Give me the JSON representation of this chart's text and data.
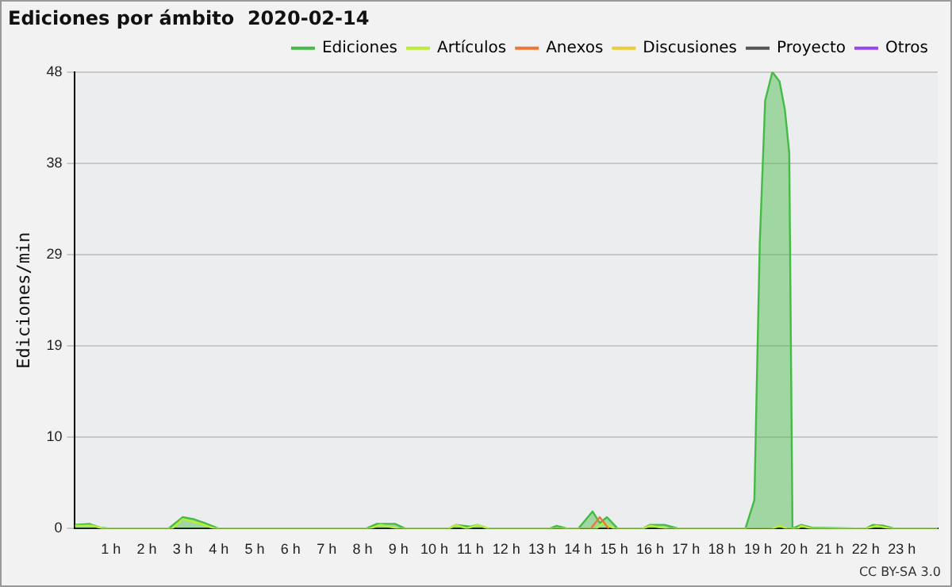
{
  "chart_data": {
    "type": "line",
    "title": "Ediciones por ámbito  2020-02-14",
    "ylabel": "Ediciones/min",
    "xlim": [
      0,
      24
    ],
    "xticks": [
      {
        "value": 1,
        "label": "1 h"
      },
      {
        "value": 2,
        "label": "2 h"
      },
      {
        "value": 3,
        "label": "3 h"
      },
      {
        "value": 4,
        "label": "4 h"
      },
      {
        "value": 5,
        "label": "5 h"
      },
      {
        "value": 6,
        "label": "6 h"
      },
      {
        "value": 7,
        "label": "7 h"
      },
      {
        "value": 8,
        "label": "8 h"
      },
      {
        "value": 9,
        "label": "9 h"
      },
      {
        "value": 10,
        "label": "10 h"
      },
      {
        "value": 11,
        "label": "11 h"
      },
      {
        "value": 12,
        "label": "12 h"
      },
      {
        "value": 13,
        "label": "13 h"
      },
      {
        "value": 14,
        "label": "14 h"
      },
      {
        "value": 15,
        "label": "15 h"
      },
      {
        "value": 16,
        "label": "16 h"
      },
      {
        "value": 17,
        "label": "17 h"
      },
      {
        "value": 18,
        "label": "18 h"
      },
      {
        "value": 19,
        "label": "19 h"
      },
      {
        "value": 20,
        "label": "20 h"
      },
      {
        "value": 21,
        "label": "21 h"
      },
      {
        "value": 22,
        "label": "22 h"
      },
      {
        "value": 23,
        "label": "23 h"
      }
    ],
    "ylim": [
      0,
      48
    ],
    "yticks": [
      0,
      {
        "value": 9.6,
        "label": "10"
      },
      {
        "value": 19.2,
        "label": "19"
      },
      {
        "value": 28.8,
        "label": "29"
      },
      {
        "value": 38.4,
        "label": "38"
      },
      48
    ],
    "grid": "y",
    "legend": "top right",
    "marker": "none",
    "line_style": "solid",
    "annotations": [
      "CC BY-SA 3.0"
    ],
    "series": [
      {
        "name": "Ediciones",
        "type": "area",
        "color": "#44bb44",
        "x": [
          0,
          0.4,
          0.7,
          1,
          2.6,
          3,
          3.3,
          3.6,
          4,
          8.1,
          8.4,
          8.9,
          9.2,
          10.4,
          10.6,
          11,
          11.2,
          11.5,
          13.2,
          13.4,
          13.7,
          14,
          14.4,
          14.6,
          14.8,
          15.1,
          15.8,
          16,
          16.4,
          16.8,
          18.65,
          18.9,
          19.05,
          19.2,
          19.4,
          19.6,
          19.75,
          19.87,
          19.96,
          20.2,
          20.5,
          22,
          22.2,
          22.5,
          22.8,
          24
        ],
        "values": [
          0.4,
          0.5,
          0.1,
          0,
          0,
          1.2,
          1,
          0.6,
          0,
          0,
          0.5,
          0.5,
          0,
          0,
          0.4,
          0.2,
          0.4,
          0,
          0,
          0.3,
          0,
          0,
          1.8,
          0.6,
          1.2,
          0,
          0,
          0.4,
          0.4,
          0,
          0,
          3,
          30,
          45,
          48,
          47,
          44,
          39.5,
          0,
          0.4,
          0.1,
          0,
          0.4,
          0.3,
          0,
          0
        ]
      },
      {
        "name": "Artículos",
        "type": "line",
        "color": "#bbee33",
        "x": [
          0,
          0.5,
          0.8,
          2.7,
          3,
          3.5,
          3.9,
          8.2,
          8.5,
          9,
          10.4,
          10.6,
          10.9,
          11.2,
          11.5,
          14.5,
          14.7,
          15,
          15.8,
          16,
          16.5,
          19.4,
          19.6,
          19.8,
          20.1,
          20.2,
          20.5,
          22,
          22.3,
          22.7,
          24
        ],
        "values": [
          0.3,
          0.3,
          0,
          0,
          1,
          0.5,
          0,
          0,
          0.4,
          0,
          0,
          0.4,
          0,
          0.4,
          0,
          0,
          0.6,
          0,
          0,
          0.3,
          0,
          0,
          0.3,
          0,
          0,
          0.3,
          0,
          0,
          0.3,
          0,
          0
        ]
      },
      {
        "name": "Anexos",
        "type": "line",
        "color": "#ee7733",
        "x": [
          14.35,
          14.6,
          14.85
        ],
        "values": [
          0,
          1.2,
          0
        ]
      },
      {
        "name": "Discusiones",
        "type": "line",
        "color": "#eecc33"
      },
      {
        "name": "Proyecto",
        "type": "line",
        "color": "#555555"
      },
      {
        "name": "Otros",
        "type": "line",
        "color": "#9944ee"
      }
    ]
  }
}
